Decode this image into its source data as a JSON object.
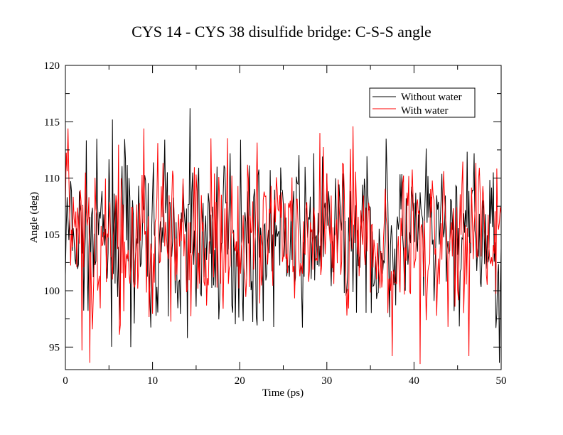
{
  "chart_data": {
    "type": "line",
    "title": "CYS 14 - CYS 38 disulfide bridge: C-S-S angle",
    "xlabel": "Time (ps)",
    "ylabel": "Angle (deg)",
    "xlim": [
      0,
      50
    ],
    "ylim": [
      93,
      120
    ],
    "xticks": [
      0,
      10,
      20,
      30,
      40,
      50
    ],
    "yticks": [
      95,
      100,
      105,
      110,
      115,
      120
    ],
    "grid": false,
    "legend_position": "top-right",
    "series": [
      {
        "name": "Without water",
        "color": "#000000",
        "x_start": 0,
        "x_step": 0.1,
        "mean": 104.6,
        "amplitude": 3.2,
        "seed": 7,
        "peaks": [
          {
            "x": 5.4,
            "y": 115.2
          },
          {
            "x": 7.5,
            "y": 95.0
          },
          {
            "x": 14.0,
            "y": 95.8
          },
          {
            "x": 14.3,
            "y": 116.2
          },
          {
            "x": 20.1,
            "y": 113.4
          },
          {
            "x": 28.5,
            "y": 112.2
          },
          {
            "x": 36.8,
            "y": 113.5
          },
          {
            "x": 46.9,
            "y": 112.2
          },
          {
            "x": 49.8,
            "y": 93.6
          }
        ]
      },
      {
        "name": "With water",
        "color": "#ff0000",
        "x_start": 0,
        "x_step": 0.1,
        "mean": 104.4,
        "amplitude": 3.4,
        "seed": 13,
        "peaks": [
          {
            "x": 0.3,
            "y": 114.4
          },
          {
            "x": 1.9,
            "y": 94.7
          },
          {
            "x": 2.8,
            "y": 93.6
          },
          {
            "x": 9.0,
            "y": 114.4
          },
          {
            "x": 29.2,
            "y": 114.0
          },
          {
            "x": 33.0,
            "y": 114.6
          },
          {
            "x": 37.5,
            "y": 94.2
          },
          {
            "x": 40.7,
            "y": 93.5
          },
          {
            "x": 46.3,
            "y": 94.2
          }
        ]
      }
    ]
  }
}
